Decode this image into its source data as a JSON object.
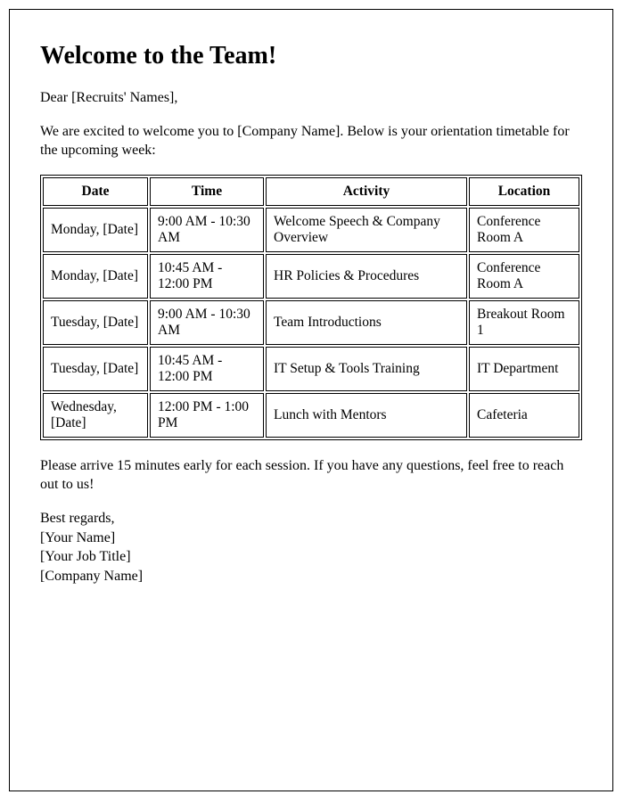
{
  "heading": "Welcome to the Team!",
  "salutation": "Dear [Recruits' Names],",
  "intro": "We are excited to welcome you to [Company Name]. Below is your orientation timetable for the upcoming week:",
  "table": {
    "columns": [
      "Date",
      "Time",
      "Activity",
      "Location"
    ],
    "col_widths": [
      "118px",
      "128px",
      "auto",
      "124px"
    ],
    "header_align": "center",
    "cell_align": "left",
    "font_size": 15.5,
    "border_color": "#000000",
    "rows": [
      {
        "date": "Monday, [Date]",
        "time": "9:00 AM - 10:30 AM",
        "activity": "Welcome Speech & Company Overview",
        "location": "Conference Room A"
      },
      {
        "date": "Monday, [Date]",
        "time": "10:45 AM - 12:00 PM",
        "activity": "HR Policies & Procedures",
        "location": "Conference Room A"
      },
      {
        "date": "Tuesday, [Date]",
        "time": "9:00 AM - 10:30 AM",
        "activity": "Team Introductions",
        "location": "Breakout Room 1"
      },
      {
        "date": "Tuesday, [Date]",
        "time": "10:45 AM - 12:00 PM",
        "activity": "IT Setup & Tools Training",
        "location": "IT Department"
      },
      {
        "date": "Wednesday, [Date]",
        "time": "12:00 PM - 1:00 PM",
        "activity": "Lunch with Mentors",
        "location": "Cafeteria"
      }
    ]
  },
  "closing_note": "Please arrive 15 minutes early for each session. If you have any questions, feel free to reach out to us!",
  "signoff": {
    "regards": "Best regards,",
    "name": "[Your Name]",
    "title": "[Your Job Title]",
    "company": "[Company Name]"
  },
  "colors": {
    "text": "#000000",
    "background": "#ffffff",
    "page_border": "#000000"
  },
  "typography": {
    "heading_fontsize": 28,
    "body_fontsize": 16,
    "font_family": "Times New Roman"
  }
}
